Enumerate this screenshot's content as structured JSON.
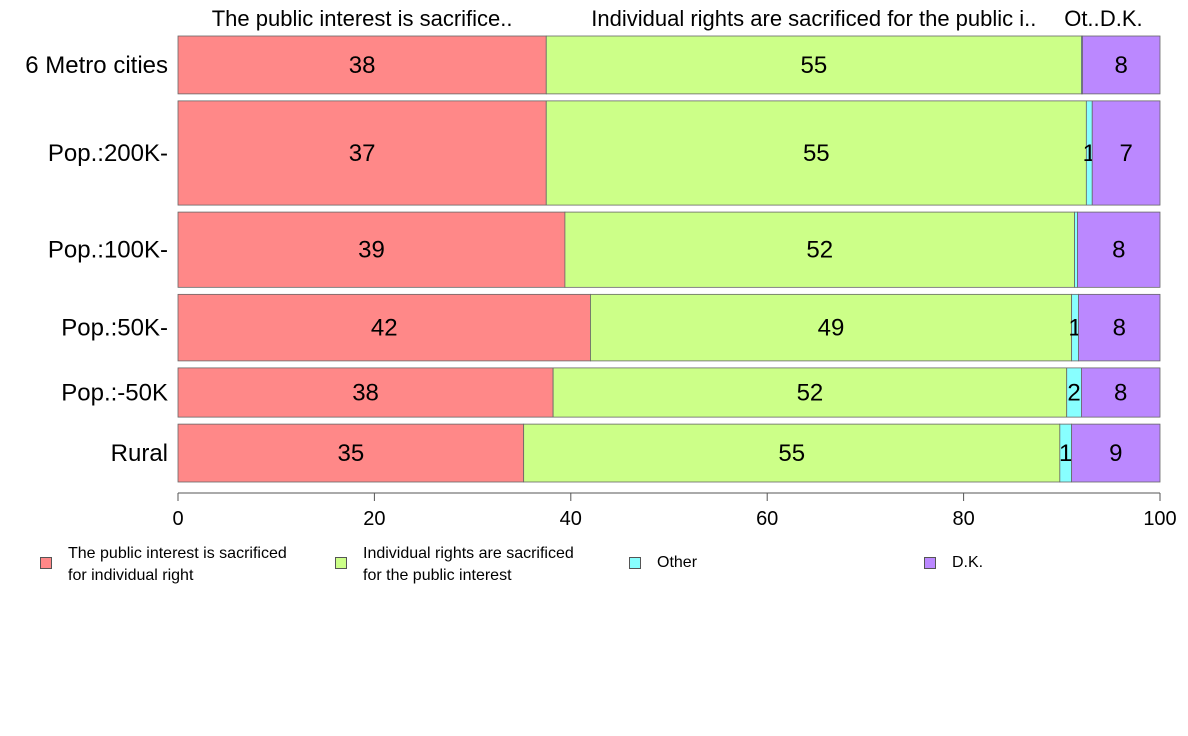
{
  "chart_data": {
    "type": "bar",
    "orientation": "horizontal",
    "stacked": true,
    "categories": [
      "6 Metro cities",
      "Pop.:200K-",
      "Pop.:100K-",
      "Pop.:50K-",
      "Pop.:-50K",
      "Rural"
    ],
    "series": [
      {
        "name": "The public interest is sacrificed for individual right",
        "top_label": "The public interest is sacrifice..",
        "color": "#ff8888",
        "values": [
          37.5,
          37.5,
          39.4,
          42.0,
          38.2,
          35.2
        ],
        "labels": [
          "38",
          "37",
          "39",
          "42",
          "38",
          "35"
        ]
      },
      {
        "name": "Individual rights are sacrificed for the public interest",
        "top_label": "Individual rights are sacrificed for the public i..",
        "color": "#ccff88",
        "values": [
          54.5,
          55.0,
          51.9,
          49.0,
          52.3,
          54.6
        ],
        "labels": [
          "55",
          "55",
          "52",
          "49",
          "52",
          "55"
        ]
      },
      {
        "name": "Other",
        "top_label": "Ot..",
        "color": "#88ffff",
        "values": [
          0.1,
          0.6,
          0.3,
          0.7,
          1.5,
          1.2
        ],
        "labels": [
          "",
          "1",
          "",
          "1",
          "2",
          "1"
        ]
      },
      {
        "name": "D.K.",
        "top_label": "D.K.",
        "color": "#bb88ff",
        "values": [
          7.9,
          6.9,
          8.4,
          8.3,
          8.0,
          9.0
        ],
        "labels": [
          "8",
          "7",
          "8",
          "8",
          "8",
          "9"
        ]
      }
    ],
    "xlim": [
      0,
      100
    ],
    "xticks": [
      "0",
      "20",
      "40",
      "60",
      "80",
      "100"
    ],
    "bar_width": [
      1.0,
      1.8,
      1.3,
      1.15,
      0.85,
      1.0
    ],
    "legend_position": "bottom",
    "grid": false
  },
  "legend": [
    {
      "text": "The public interest is sacrificed\nfor individual right",
      "color": "#ff8888"
    },
    {
      "text": "Individual rights are sacrificed\nfor the public interest",
      "color": "#ccff88"
    },
    {
      "text": "Other",
      "color": "#88ffff"
    },
    {
      "text": "D.K.",
      "color": "#bb88ff"
    }
  ]
}
